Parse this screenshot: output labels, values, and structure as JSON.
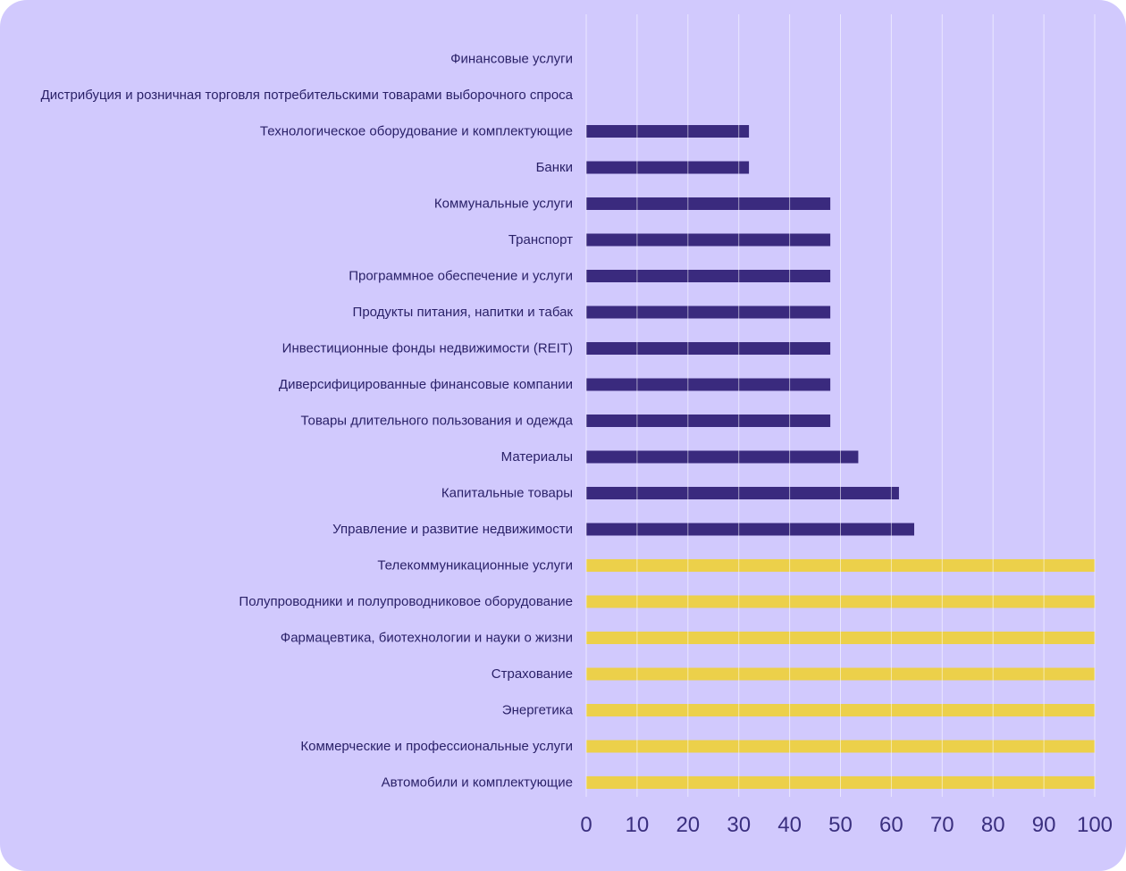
{
  "colors": {
    "background": "#d1c9fd",
    "bar_primary": "#3a2a7e",
    "bar_highlight": "#ecd04a",
    "gridline": "#ffffff",
    "text": "#2a2168"
  },
  "chart_data": {
    "type": "bar",
    "orientation": "horizontal",
    "title": "",
    "xlabel": "",
    "ylabel": "",
    "xlim": [
      0,
      100
    ],
    "xticks": [
      0,
      10,
      20,
      30,
      40,
      50,
      60,
      70,
      80,
      90,
      100
    ],
    "grid": true,
    "categories": [
      "Финансовые услуги",
      "Дистрибуция и розничная торговля потребительскими товарами выборочного спроса",
      "Технологическое оборудование и комплектующие",
      "Банки",
      "Коммунальные услуги",
      "Транспорт",
      "Программное обеспечение и услуги",
      "Продукты питания, напитки и табак",
      "Инвестиционные фонды недвижимости (REIT)",
      "Диверсифицированные финансовые компании",
      "Товары длительного пользования и одежда",
      "Материалы",
      "Капитальные товары",
      "Управление и развитие недвижимости",
      "Телекоммуникационные услуги",
      "Полупроводники и полупроводниковое оборудование",
      "Фармацевтика, биотехнологии и науки о жизни",
      "Страхование",
      "Энергетика",
      "Коммерческие и профессиональные услуги",
      "Автомобили и комплектующие"
    ],
    "values": [
      0,
      0,
      32,
      32,
      48,
      48,
      48,
      48,
      48,
      48,
      48,
      53.5,
      61.5,
      64.5,
      100,
      100,
      100,
      100,
      100,
      100,
      100
    ],
    "bar_colors": [
      "primary",
      "primary",
      "primary",
      "primary",
      "primary",
      "primary",
      "primary",
      "primary",
      "primary",
      "primary",
      "primary",
      "primary",
      "primary",
      "primary",
      "highlight",
      "highlight",
      "highlight",
      "highlight",
      "highlight",
      "highlight",
      "highlight"
    ]
  }
}
